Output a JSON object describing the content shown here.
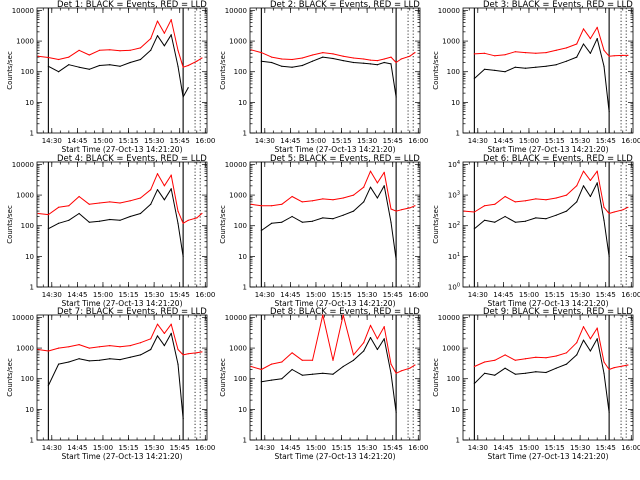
{
  "x_tick_labels": [
    "14:30",
    "14:45",
    "15:00",
    "15:15",
    "15:30",
    "15:45",
    "16:00"
  ],
  "xlabel": "Start Time (27-Oct-13 14:21:20)",
  "ylabel": "Counts/sec",
  "colors": {
    "events": "#000000",
    "lld": "#ff0000",
    "axes": "#000000"
  },
  "markers": {
    "solid_times": [
      "14:28",
      "15:47"
    ],
    "dotted_times": [
      "15:54",
      "15:57"
    ]
  },
  "chart_data": [
    {
      "type": "line",
      "title": "Det 1: BLACK = Events, RED = LLD",
      "xlabel": "Start Time (27-Oct-13 14:21:20)",
      "ylabel": "Counts/sec",
      "x_ticks": [
        "14:30",
        "14:45",
        "15:00",
        "15:15",
        "15:30",
        "15:45",
        "16:00"
      ],
      "y_ticks": [
        "1",
        "10",
        "100",
        "1000",
        "10000"
      ],
      "y_scale": "log",
      "xlim": [
        "14:21:20",
        "16:01"
      ],
      "ylim": [
        1,
        12000
      ],
      "x": [
        "14:22",
        "14:28",
        "14:34",
        "14:40",
        "14:46",
        "14:52",
        "14:58",
        "15:04",
        "15:10",
        "15:16",
        "15:22",
        "15:28",
        "15:32",
        "15:36",
        "15:40",
        "15:44",
        "15:47",
        "15:50",
        "15:55",
        "15:58"
      ],
      "series": [
        {
          "name": "Events",
          "values": [
            null,
            150,
            100,
            170,
            140,
            120,
            160,
            170,
            150,
            200,
            250,
            500,
            1500,
            700,
            1600,
            150,
            15,
            30,
            null,
            null
          ]
        },
        {
          "name": "LLD",
          "values": [
            320,
            290,
            250,
            300,
            500,
            350,
            500,
            520,
            480,
            500,
            600,
            1200,
            4500,
            1800,
            5000,
            500,
            140,
            160,
            220,
            280
          ]
        }
      ]
    },
    {
      "type": "line",
      "title": "Det 2: BLACK = Events, RED = LLD",
      "xlabel": "Start Time (27-Oct-13 14:21:20)",
      "ylabel": "Counts/sec",
      "x_ticks": [
        "14:30",
        "14:45",
        "15:00",
        "15:15",
        "15:30",
        "15:45",
        "16:00"
      ],
      "y_ticks": [
        "1",
        "10",
        "100",
        "1000",
        "10000"
      ],
      "y_scale": "log",
      "xlim": [
        "14:21:20",
        "16:01"
      ],
      "ylim": [
        1,
        12000
      ],
      "x": [
        "14:22",
        "14:28",
        "14:34",
        "14:40",
        "14:46",
        "14:52",
        "14:58",
        "15:04",
        "15:10",
        "15:16",
        "15:22",
        "15:28",
        "15:32",
        "15:36",
        "15:40",
        "15:44",
        "15:47",
        "15:50",
        "15:55",
        "15:58"
      ],
      "series": [
        {
          "name": "Events",
          "values": [
            null,
            220,
            200,
            150,
            140,
            160,
            220,
            300,
            270,
            230,
            200,
            190,
            180,
            170,
            200,
            180,
            15,
            null,
            null,
            null
          ]
        },
        {
          "name": "LLD",
          "values": [
            520,
            420,
            300,
            260,
            250,
            280,
            350,
            420,
            380,
            320,
            280,
            260,
            240,
            230,
            260,
            300,
            200,
            260,
            320,
            420
          ]
        }
      ]
    },
    {
      "type": "line",
      "title": "Det 3: BLACK = Events, RED = LLD",
      "xlabel": "Start Time (27-Oct-13 14:21:20)",
      "ylabel": "Counts/sec",
      "x_ticks": [
        "14:30",
        "14:45",
        "15:00",
        "15:15",
        "15:30",
        "15:45",
        "16:00"
      ],
      "y_ticks": [
        "1",
        "10",
        "100",
        "1000",
        "10000"
      ],
      "y_scale": "log",
      "xlim": [
        "14:21:20",
        "16:01"
      ],
      "ylim": [
        1,
        12000
      ],
      "x": [
        "14:22",
        "14:28",
        "14:34",
        "14:40",
        "14:46",
        "14:52",
        "14:58",
        "15:04",
        "15:10",
        "15:16",
        "15:22",
        "15:28",
        "15:32",
        "15:36",
        "15:40",
        "15:44",
        "15:47",
        "15:50",
        "15:55",
        "15:58"
      ],
      "series": [
        {
          "name": "Events",
          "values": [
            null,
            60,
            120,
            110,
            100,
            140,
            130,
            140,
            150,
            170,
            220,
            300,
            800,
            400,
            1200,
            150,
            5,
            null,
            null,
            null
          ]
        },
        {
          "name": "LLD",
          "values": [
            null,
            380,
            400,
            330,
            360,
            450,
            420,
            400,
            420,
            500,
            600,
            800,
            2500,
            1200,
            2800,
            500,
            320,
            330,
            340,
            340
          ]
        }
      ]
    },
    {
      "type": "line",
      "title": "Det 4: BLACK = Events, RED = LLD",
      "xlabel": "Start Time (27-Oct-13 14:21:20)",
      "ylabel": "Counts/sec",
      "x_ticks": [
        "14:30",
        "14:45",
        "15:00",
        "15:15",
        "15:30",
        "15:45",
        "16:00"
      ],
      "y_ticks": [
        "1",
        "10",
        "100",
        "1000",
        "10000"
      ],
      "y_scale": "log",
      "xlim": [
        "14:21:20",
        "16:01"
      ],
      "ylim": [
        1,
        12000
      ],
      "x": [
        "14:22",
        "14:28",
        "14:34",
        "14:40",
        "14:46",
        "14:52",
        "14:58",
        "15:04",
        "15:10",
        "15:16",
        "15:22",
        "15:28",
        "15:32",
        "15:36",
        "15:40",
        "15:44",
        "15:47",
        "15:50",
        "15:55",
        "15:58"
      ],
      "series": [
        {
          "name": "Events",
          "values": [
            null,
            80,
            120,
            150,
            250,
            130,
            140,
            160,
            150,
            200,
            250,
            500,
            1500,
            700,
            1600,
            120,
            10,
            null,
            null,
            null
          ]
        },
        {
          "name": "LLD",
          "values": [
            250,
            230,
            400,
            450,
            900,
            500,
            550,
            600,
            550,
            650,
            800,
            1500,
            5000,
            2000,
            4500,
            300,
            120,
            150,
            180,
            250
          ]
        }
      ]
    },
    {
      "type": "line",
      "title": "Det 5: BLACK = Events, RED = LLD",
      "xlabel": "Start Time (27-Oct-13 14:21:20)",
      "ylabel": "Counts/sec",
      "x_ticks": [
        "14:30",
        "14:45",
        "15:00",
        "15:15",
        "15:30",
        "15:45",
        "16:00"
      ],
      "y_ticks": [
        "1",
        "10",
        "100",
        "1000",
        "10000"
      ],
      "y_scale": "log",
      "xlim": [
        "14:21:20",
        "16:01"
      ],
      "ylim": [
        1,
        12000
      ],
      "x": [
        "14:22",
        "14:28",
        "14:34",
        "14:40",
        "14:46",
        "14:52",
        "14:58",
        "15:04",
        "15:10",
        "15:16",
        "15:22",
        "15:28",
        "15:32",
        "15:36",
        "15:40",
        "15:44",
        "15:47",
        "15:50",
        "15:55",
        "15:58"
      ],
      "series": [
        {
          "name": "Events",
          "values": [
            null,
            70,
            120,
            130,
            200,
            130,
            140,
            180,
            170,
            220,
            300,
            600,
            1800,
            800,
            2000,
            130,
            8,
            null,
            null,
            null
          ]
        },
        {
          "name": "LLD",
          "values": [
            500,
            450,
            450,
            500,
            900,
            600,
            650,
            750,
            700,
            800,
            1000,
            1800,
            6000,
            2500,
            5500,
            350,
            300,
            330,
            380,
            450
          ]
        }
      ]
    },
    {
      "type": "line",
      "title": "Det 6: BLACK = Events, RED = LLD",
      "xlabel": "Start Time (27-Oct-13 14:21:20)",
      "ylabel": "Counts/sec",
      "x_ticks": [
        "14:30",
        "14:45",
        "15:00",
        "15:15",
        "15:30",
        "15:45",
        "16:00"
      ],
      "y_ticks": [
        "10^0",
        "10^1",
        "10^2",
        "10^3",
        "10^4"
      ],
      "y_scale": "log",
      "xlim": [
        "14:21:20",
        "16:01"
      ],
      "ylim": [
        1,
        12000
      ],
      "x": [
        "14:22",
        "14:28",
        "14:34",
        "14:40",
        "14:46",
        "14:52",
        "14:58",
        "15:04",
        "15:10",
        "15:16",
        "15:22",
        "15:28",
        "15:32",
        "15:36",
        "15:40",
        "15:44",
        "15:47",
        "15:50",
        "15:55",
        "15:58"
      ],
      "series": [
        {
          "name": "Events",
          "values": [
            null,
            80,
            150,
            130,
            200,
            130,
            140,
            180,
            170,
            220,
            300,
            600,
            2000,
            900,
            2500,
            150,
            10,
            null,
            null,
            null
          ]
        },
        {
          "name": "LLD",
          "values": [
            300,
            280,
            450,
            500,
            900,
            600,
            650,
            750,
            700,
            800,
            1000,
            2000,
            6000,
            3000,
            6000,
            400,
            250,
            280,
            330,
            400
          ]
        }
      ]
    },
    {
      "type": "line",
      "title": "Det 7: BLACK = Events, RED = LLD",
      "xlabel": "Start Time (27-Oct-13 14:21:20)",
      "ylabel": "Counts/sec",
      "x_ticks": [
        "14:30",
        "14:45",
        "15:00",
        "15:15",
        "15:30",
        "15:45",
        "16:00"
      ],
      "y_ticks": [
        "1",
        "10",
        "100",
        "1000",
        "10000"
      ],
      "y_scale": "log",
      "xlim": [
        "14:21:20",
        "16:01"
      ],
      "ylim": [
        1,
        12000
      ],
      "x": [
        "14:22",
        "14:28",
        "14:34",
        "14:40",
        "14:46",
        "14:52",
        "14:58",
        "15:04",
        "15:10",
        "15:16",
        "15:22",
        "15:28",
        "15:32",
        "15:36",
        "15:40",
        "15:44",
        "15:47",
        "15:50",
        "15:55",
        "15:58"
      ],
      "series": [
        {
          "name": "Events",
          "values": [
            null,
            60,
            300,
            350,
            450,
            380,
            400,
            450,
            420,
            500,
            600,
            900,
            2500,
            1200,
            3000,
            300,
            5,
            null,
            null,
            null
          ]
        },
        {
          "name": "LLD",
          "values": [
            900,
            800,
            1000,
            1100,
            1300,
            1000,
            1100,
            1200,
            1100,
            1200,
            1500,
            2000,
            6000,
            3000,
            6000,
            900,
            600,
            650,
            700,
            750
          ]
        }
      ]
    },
    {
      "type": "line",
      "title": "Det 8: BLACK = Events, RED = LLD",
      "xlabel": "Start Time (27-Oct-13 14:21:20)",
      "ylabel": "Counts/sec",
      "x_ticks": [
        "14:30",
        "14:45",
        "15:00",
        "15:15",
        "15:30",
        "15:45",
        "16:00"
      ],
      "y_ticks": [
        "1",
        "10",
        "100",
        "1000",
        "10000"
      ],
      "y_scale": "log",
      "xlim": [
        "14:21:20",
        "16:01"
      ],
      "ylim": [
        1,
        12000
      ],
      "x": [
        "14:22",
        "14:28",
        "14:34",
        "14:40",
        "14:46",
        "14:52",
        "14:58",
        "15:04",
        "15:10",
        "15:16",
        "15:22",
        "15:28",
        "15:32",
        "15:36",
        "15:40",
        "15:44",
        "15:47",
        "15:50",
        "15:55",
        "15:58"
      ],
      "series": [
        {
          "name": "Events",
          "values": [
            null,
            80,
            90,
            100,
            200,
            130,
            140,
            150,
            140,
            250,
            400,
            800,
            2200,
            900,
            2000,
            150,
            8,
            null,
            null,
            null
          ]
        },
        {
          "name": "LLD",
          "values": [
            250,
            200,
            300,
            350,
            700,
            400,
            400,
            12000,
            400,
            12000,
            600,
            1500,
            5500,
            2000,
            5000,
            300,
            150,
            180,
            220,
            280
          ]
        }
      ]
    },
    {
      "type": "line",
      "title": "Det 9: BLACK = Events, RED = LLD",
      "xlabel": "Start Time (27-Oct-13 14:21:20)",
      "ylabel": "Counts/sec",
      "x_ticks": [
        "14:30",
        "14:45",
        "15:00",
        "15:15",
        "15:30",
        "15:45",
        "16:00"
      ],
      "y_ticks": [
        "1",
        "10",
        "100",
        "1000",
        "10000"
      ],
      "y_scale": "log",
      "xlim": [
        "14:21:20",
        "16:01"
      ],
      "ylim": [
        1,
        12000
      ],
      "x": [
        "14:22",
        "14:28",
        "14:34",
        "14:40",
        "14:46",
        "14:52",
        "14:58",
        "15:04",
        "15:10",
        "15:16",
        "15:22",
        "15:28",
        "15:32",
        "15:36",
        "15:40",
        "15:44",
        "15:47",
        "15:50",
        "15:55",
        "15:58"
      ],
      "series": [
        {
          "name": "Events",
          "values": [
            null,
            70,
            150,
            130,
            220,
            140,
            150,
            170,
            160,
            220,
            300,
            600,
            1800,
            800,
            2000,
            150,
            8,
            null,
            null,
            null
          ]
        },
        {
          "name": "LLD",
          "values": [
            null,
            250,
            350,
            400,
            600,
            400,
            450,
            500,
            480,
            550,
            700,
            1500,
            5000,
            2000,
            4500,
            350,
            200,
            230,
            260,
            280
          ]
        }
      ]
    }
  ]
}
